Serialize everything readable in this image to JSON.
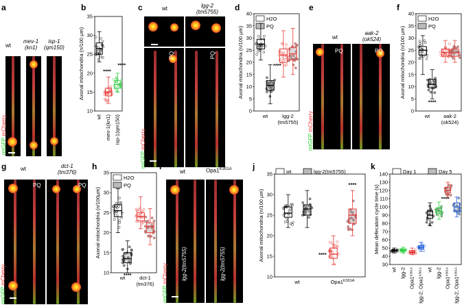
{
  "panels": {
    "a": {
      "label": "a",
      "images": [
        {
          "label": "wt"
        },
        {
          "label": "mev-1\n(kn1)"
        },
        {
          "label": "isp-1\n(qm150)"
        }
      ],
      "channels": {
        "g": "mtGFP",
        "r": "mCherry"
      }
    },
    "c": {
      "label": "c",
      "wt": "wt",
      "mut": "lgg-2\n(tm5755)",
      "pq": "PQ",
      "channels": {
        "g": "mtGFP",
        "r": "mCherry"
      }
    },
    "e": {
      "label": "e",
      "wt": "wt",
      "mut": "aak-2\n(ok524)",
      "pq": "PQ",
      "channels": {
        "g": "mtGFP",
        "r": "mCherry"
      }
    },
    "g": {
      "label": "g",
      "wt": "wt",
      "mut": "dct-1\n(tm376)",
      "pq": "PQ",
      "channels": {
        "g": "mtGFP",
        "r": "mCherry"
      }
    },
    "i": {
      "label": "i",
      "wt": "wt",
      "mut": "Opa1",
      "mut_sup": "K301A",
      "overlay": "lgg-2(tm5755)",
      "channels": {
        "g": "mtGFP",
        "r": "mCherry"
      }
    }
  },
  "chart_data": [
    {
      "id": "b",
      "label": "b",
      "type": "scatter",
      "ylabel": "Axonal mitochondria (n/100 µm)",
      "ylim": [
        10,
        35
      ],
      "yticks": [
        10,
        15,
        20,
        25,
        30,
        35
      ],
      "categories": [
        "wt",
        "mev-1(kn1)",
        "isp-1(qm150)"
      ],
      "groups": [
        {
          "x": "wt",
          "median": 26.5,
          "q1": 25,
          "q3": 28,
          "min": 23,
          "max": 31,
          "color": "#000000"
        },
        {
          "x": "mev-1(kn1)",
          "median": 15,
          "q1": 14,
          "q3": 16,
          "min": 12,
          "max": 19,
          "color": "#e53935"
        },
        {
          "x": "isp-1(qm150)",
          "median": 17,
          "q1": 16,
          "q3": 18,
          "min": 15,
          "max": 20,
          "color": "#2ecc40"
        }
      ],
      "annotations": [
        "****",
        "****"
      ]
    },
    {
      "id": "d",
      "label": "d",
      "type": "scatter",
      "ylabel": "Axonal mitochondria (n/100 µm)",
      "ylim": [
        0,
        40
      ],
      "yticks": [
        0,
        5,
        10,
        15,
        20,
        25,
        30,
        35,
        40
      ],
      "legend": [
        "H2O",
        "PQ"
      ],
      "categories": [
        "wt",
        "lgg-2\n(tm5755)"
      ],
      "groups": [
        {
          "x": "wt",
          "series": "H2O",
          "median": 27.5,
          "q1": 25.5,
          "q3": 29.5,
          "min": 21,
          "max": 36,
          "color": "#000000"
        },
        {
          "x": "wt",
          "series": "PQ",
          "median": 10.5,
          "q1": 8.5,
          "q3": 12.5,
          "min": 3,
          "max": 19,
          "color": "#000000"
        },
        {
          "x": "lgg-2(tm5755)",
          "series": "H2O",
          "median": 23,
          "q1": 20,
          "q3": 25.5,
          "min": 14,
          "max": 33,
          "color": "#e53935"
        },
        {
          "x": "lgg-2(tm5755)",
          "series": "PQ",
          "median": 23.5,
          "q1": 21,
          "q3": 26,
          "min": 15,
          "max": 34,
          "color": "#e53935"
        }
      ],
      "annotations": [
        "****"
      ]
    },
    {
      "id": "f",
      "label": "f",
      "type": "scatter",
      "ylabel": "Axonal mitochondria (n/100 µm)",
      "ylim": [
        0,
        40
      ],
      "yticks": [
        0,
        5,
        10,
        15,
        20,
        25,
        30,
        35,
        40
      ],
      "legend": [
        "H2O",
        "PQ"
      ],
      "categories": [
        "wt",
        "aak-2\n(ok524)"
      ],
      "groups": [
        {
          "x": "wt",
          "series": "H2O",
          "median": 25,
          "q1": 23,
          "q3": 26.5,
          "min": 15,
          "max": 31,
          "color": "#000000"
        },
        {
          "x": "wt",
          "series": "PQ",
          "median": 11,
          "q1": 9.5,
          "q3": 13,
          "min": 5,
          "max": 17,
          "color": "#000000"
        },
        {
          "x": "aak-2(ok524)",
          "series": "H2O",
          "median": 24,
          "q1": 22.5,
          "q3": 25.5,
          "min": 20,
          "max": 29,
          "color": "#e53935"
        },
        {
          "x": "aak-2(ok524)",
          "series": "PQ",
          "median": 24,
          "q1": 22.5,
          "q3": 25.5,
          "min": 20,
          "max": 29,
          "color": "#e53935"
        }
      ],
      "annotations": [
        "****"
      ]
    },
    {
      "id": "h",
      "label": "h",
      "type": "scatter",
      "ylabel": "Axonal mitochondria (n/100µm)",
      "ylim": [
        10,
        35
      ],
      "yticks": [
        10,
        15,
        20,
        25,
        30,
        35
      ],
      "legend": [
        "H2O",
        "PQ"
      ],
      "categories": [
        "wt",
        "dct-1\n(tm376)"
      ],
      "groups": [
        {
          "x": "wt",
          "series": "H2O",
          "median": 25.5,
          "q1": 24,
          "q3": 27,
          "min": 20,
          "max": 31,
          "color": "#000000"
        },
        {
          "x": "wt",
          "series": "PQ",
          "median": 13.5,
          "q1": 12.5,
          "q3": 15,
          "min": 10,
          "max": 18,
          "color": "#000000"
        },
        {
          "x": "dct-1(tm376)",
          "series": "H2O",
          "median": 24,
          "q1": 23,
          "q3": 25,
          "min": 21,
          "max": 29,
          "color": "#e53935"
        },
        {
          "x": "dct-1(tm376)",
          "series": "PQ",
          "median": 21.5,
          "q1": 20,
          "q3": 22.5,
          "min": 17,
          "max": 26,
          "color": "#e53935"
        }
      ],
      "annotations": [
        "****"
      ]
    },
    {
      "id": "j",
      "label": "j",
      "type": "scatter",
      "ylabel": "Axonal mitochondria (n/100 µm)",
      "ylim": [
        10,
        35
      ],
      "yticks": [
        10,
        15,
        20,
        25,
        30,
        35
      ],
      "legend": [
        "wt",
        "lgg-2(tm5755)"
      ],
      "categories": [
        "wt",
        "Opa1K301A"
      ],
      "category_labels": [
        {
          "text": "wt",
          "sup": ""
        },
        {
          "text": "Opa1",
          "sup": "K301A"
        }
      ],
      "groups": [
        {
          "x": "wt",
          "series": "wt",
          "median": 25.5,
          "q1": 24.5,
          "q3": 27,
          "min": 22,
          "max": 30,
          "color": "#000000"
        },
        {
          "x": "wt",
          "series": "lgg-2(tm5755)",
          "median": 26.5,
          "q1": 25,
          "q3": 27.5,
          "min": 22,
          "max": 31,
          "color": "#000000"
        },
        {
          "x": "Opa1K301A",
          "series": "wt",
          "median": 15.5,
          "q1": 14.5,
          "q3": 17,
          "min": 13,
          "max": 20,
          "color": "#e53935"
        },
        {
          "x": "Opa1K301A",
          "series": "lgg-2(tm5755)",
          "median": 25,
          "q1": 23,
          "q3": 26.5,
          "min": 20,
          "max": 31,
          "color": "#e53935"
        }
      ],
      "annotations": [
        "****",
        "****"
      ]
    },
    {
      "id": "k",
      "label": "k",
      "type": "scatter",
      "ylabel": "Mean defecation cycle time (s)",
      "ylim": [
        30,
        140
      ],
      "yticks": [
        30,
        40,
        50,
        60,
        70,
        80,
        90,
        100,
        110,
        120,
        130,
        140
      ],
      "legend": [
        "Day 1",
        "Day 5"
      ],
      "categories": [
        "wt",
        "lgg-2",
        "Opa1K301A",
        "lgg-2;Opa1K301A"
      ],
      "xlabels": [
        {
          "text": "wt",
          "sup": ""
        },
        {
          "text": "lgg-2",
          "sup": ""
        },
        {
          "text": "Opa1",
          "sup": "K301A"
        },
        {
          "text": "lgg-2; Opa1",
          "sup": "K301A"
        },
        {
          "text": "wt",
          "sup": ""
        },
        {
          "text": "lgg-2",
          "sup": ""
        },
        {
          "text": "Opa1",
          "sup": "K301A"
        },
        {
          "text": "lgg-2; Opa1",
          "sup": "K301A"
        }
      ],
      "groups": [
        {
          "x": "wt",
          "series": "Day 1",
          "median": 47,
          "q1": 46,
          "q3": 48,
          "min": 44,
          "max": 50,
          "color": "#000000"
        },
        {
          "x": "lgg-2",
          "series": "Day 1",
          "median": 47,
          "q1": 46,
          "q3": 48.5,
          "min": 44,
          "max": 51,
          "color": "#2ecc40"
        },
        {
          "x": "Opa1K301A",
          "series": "Day 1",
          "median": 45,
          "q1": 44,
          "q3": 47,
          "min": 42,
          "max": 50,
          "color": "#e53935"
        },
        {
          "x": "lgg-2;Opa1K301A",
          "series": "Day 1",
          "median": 51,
          "q1": 49,
          "q3": 53,
          "min": 46,
          "max": 57,
          "color": "#1e5bd8"
        },
        {
          "x": "wt",
          "series": "Day 5",
          "median": 90,
          "q1": 86,
          "q3": 95,
          "min": 77,
          "max": 105,
          "color": "#000000"
        },
        {
          "x": "lgg-2",
          "series": "Day 5",
          "median": 95,
          "q1": 92,
          "q3": 99,
          "min": 85,
          "max": 106,
          "color": "#2ecc40"
        },
        {
          "x": "Opa1K301A",
          "series": "Day 5",
          "median": 120,
          "q1": 117,
          "q3": 124,
          "min": 111,
          "max": 130,
          "color": "#e53935"
        },
        {
          "x": "lgg-2;Opa1K301A",
          "series": "Day 5",
          "median": 100,
          "q1": 95,
          "q3": 105,
          "min": 88,
          "max": 112,
          "color": "#1e5bd8"
        }
      ],
      "annotations": [
        "****"
      ]
    }
  ]
}
